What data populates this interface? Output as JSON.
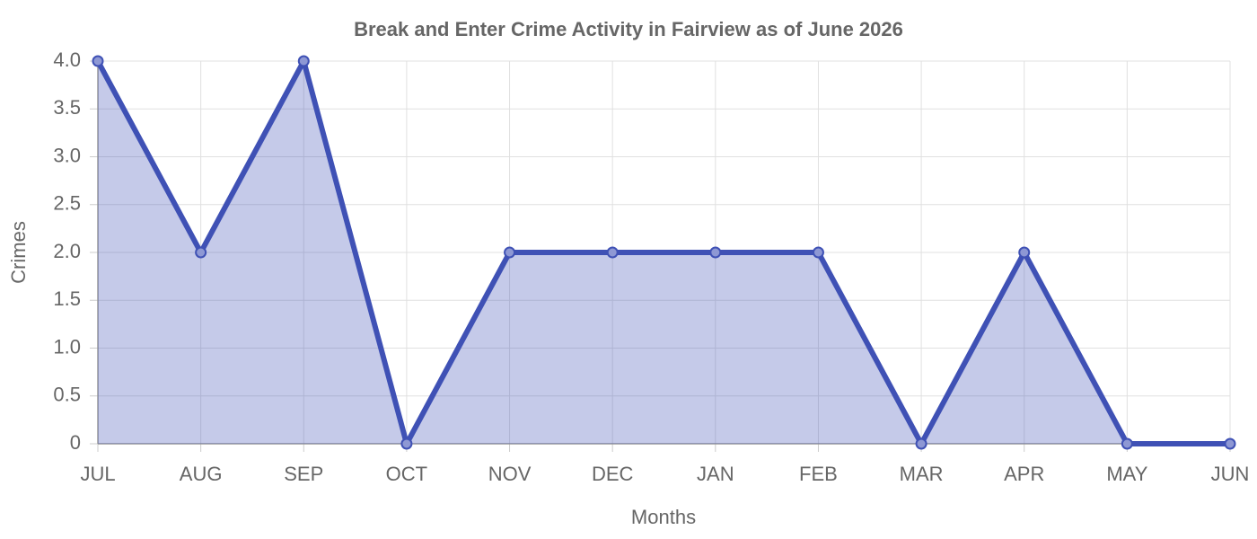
{
  "chart_data": {
    "type": "area",
    "title": "Break and Enter Crime Activity in Fairview as of June 2026",
    "x_label": "Months",
    "y_label": "Crimes",
    "categories": [
      "JUL",
      "AUG",
      "SEP",
      "OCT",
      "NOV",
      "DEC",
      "JAN",
      "FEB",
      "MAR",
      "APR",
      "MAY",
      "JUN"
    ],
    "values": [
      4,
      2,
      4,
      0,
      2,
      2,
      2,
      2,
      0,
      2,
      0,
      0
    ],
    "color": "#3f51b5",
    "ylim": [
      0,
      4
    ],
    "yticks": [
      0,
      0.5,
      {
        "value": 1,
        "label": "1.0"
      },
      1.5,
      {
        "value": 2,
        "label": "2.0"
      },
      2.5,
      {
        "value": 3,
        "label": "3.0"
      },
      3.5,
      {
        "value": 4,
        "label": "4.0"
      }
    ],
    "grid": true
  }
}
